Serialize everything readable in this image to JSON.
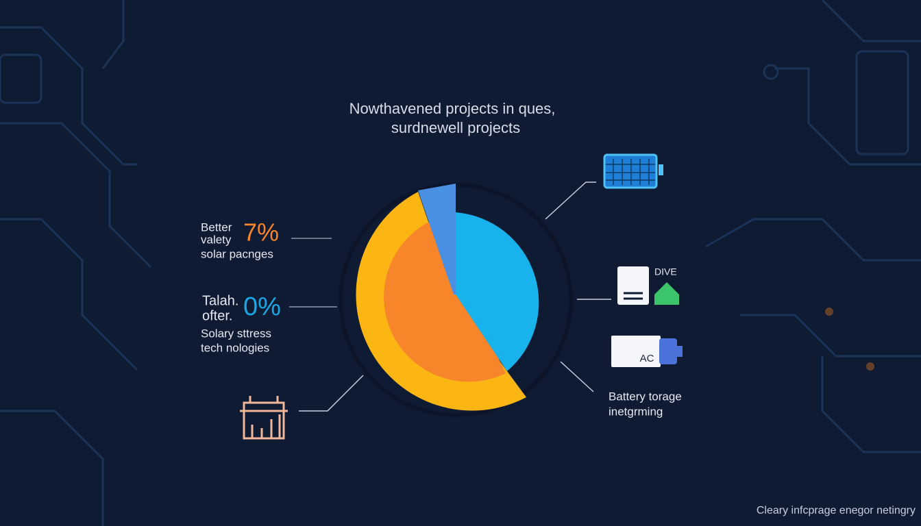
{
  "title": {
    "lines": [
      "Nowthavened projects in ques,",
      "surdnewell projects"
    ]
  },
  "callouts": [
    {
      "label_lines": [
        "Better",
        "valety"
      ],
      "value": "7%",
      "caption_lines": [
        "solar pacnges"
      ]
    },
    {
      "label_lines": [
        "Talah.",
        "ofter."
      ],
      "value": "0%",
      "caption_lines": [
        "Solary sttress",
        "tech nologies"
      ]
    }
  ],
  "icons": {
    "home_badge": "DIVE",
    "battery_label": "AC"
  },
  "battery_callout": {
    "lines": [
      "Battery torage",
      "inetgrming"
    ]
  },
  "footer": "Cleary infcprage enegor netingry"
}
